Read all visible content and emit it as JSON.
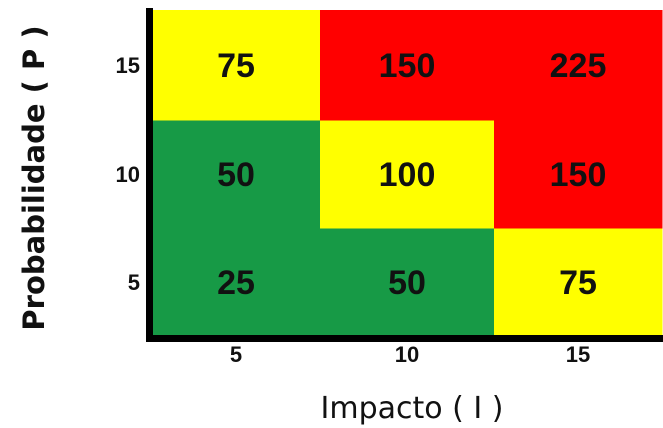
{
  "chart_data": {
    "type": "heatmap",
    "title": "",
    "xlabel": "Impacto ( I )",
    "ylabel": "Probabilidade ( P )",
    "x_categories": [
      "5",
      "10",
      "15"
    ],
    "y_categories": [
      "5",
      "10",
      "15"
    ],
    "values": [
      [
        25,
        50,
        75
      ],
      [
        50,
        100,
        150
      ],
      [
        75,
        150,
        225
      ]
    ],
    "cell_colors": [
      [
        "#179a46",
        "#179a46",
        "#ffff00"
      ],
      [
        "#179a46",
        "#ffff00",
        "#ff0000"
      ],
      [
        "#ffff00",
        "#ff0000",
        "#ff0000"
      ]
    ],
    "colors": {
      "low": "#179a46",
      "medium": "#ffff00",
      "high": "#ff0000"
    },
    "grid": false,
    "legend": "none"
  }
}
